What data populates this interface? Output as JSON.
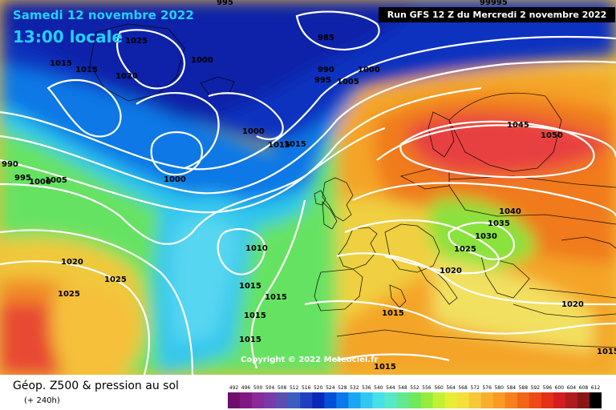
{
  "header": {
    "valid_date": "Samedi 12 novembre 2022",
    "valid_time": "13:00 locale",
    "run_info": "Run GFS 12 Z du Mercredi 2 novembre 2022"
  },
  "map": {
    "copyright": "Copyright © 2022 Meteociel.fr",
    "pressure_labels": [
      {
        "text": "995"
      },
      {
        "text": "99995"
      },
      {
        "text": "1025"
      },
      {
        "text": "985"
      },
      {
        "text": "1015"
      },
      {
        "text": "1015"
      },
      {
        "text": "1020"
      },
      {
        "text": "1000"
      },
      {
        "text": "990"
      },
      {
        "text": "1000"
      },
      {
        "text": "995"
      },
      {
        "text": "1005"
      },
      {
        "text": "1000"
      },
      {
        "text": "1015"
      },
      {
        "text": "1015"
      },
      {
        "text": "990"
      },
      {
        "text": "995"
      },
      {
        "text": "1000"
      },
      {
        "text": "1005"
      },
      {
        "text": "1000"
      },
      {
        "text": "1045"
      },
      {
        "text": "1050"
      },
      {
        "text": "1040"
      },
      {
        "text": "1035"
      },
      {
        "text": "1030"
      },
      {
        "text": "1025"
      },
      {
        "text": "1020"
      },
      {
        "text": "1010"
      },
      {
        "text": "1020"
      },
      {
        "text": "1025"
      },
      {
        "text": "1025"
      },
      {
        "text": "1015"
      },
      {
        "text": "1015"
      },
      {
        "text": "1015"
      },
      {
        "text": "1015"
      },
      {
        "text": "1015"
      },
      {
        "text": "1020"
      },
      {
        "text": "1015"
      },
      {
        "text": "1015"
      }
    ]
  },
  "footer": {
    "title": "Géop. Z500 & pression au sol",
    "subtitle": "(+ 240h)"
  },
  "legend": {
    "labels": [
      "492",
      "496",
      "500",
      "504",
      "508",
      "512",
      "516",
      "520",
      "524",
      "528",
      "532",
      "536",
      "540",
      "544",
      "548",
      "552",
      "556",
      "560",
      "564",
      "568",
      "572",
      "576",
      "580",
      "584",
      "588",
      "592",
      "596",
      "600",
      "604",
      "608",
      "612"
    ],
    "colors": [
      "#6e0f6e",
      "#801a82",
      "#8a2a98",
      "#7a3aa8",
      "#5a4fb0",
      "#3a5ec0",
      "#1e40c0",
      "#0a28b8",
      "#0050d8",
      "#0a7ae8",
      "#1aa6f0",
      "#30c8f0",
      "#48e0e8",
      "#56e8c8",
      "#62e890",
      "#6ee85c",
      "#94ec3c",
      "#c2f034",
      "#e8ee36",
      "#f4e03a",
      "#f6c838",
      "#f8b02c",
      "#f89a24",
      "#f6801c",
      "#f26418",
      "#ee4a16",
      "#e43018",
      "#d21e1e",
      "#b01c1c",
      "#8a1616",
      "#000000"
    ]
  }
}
